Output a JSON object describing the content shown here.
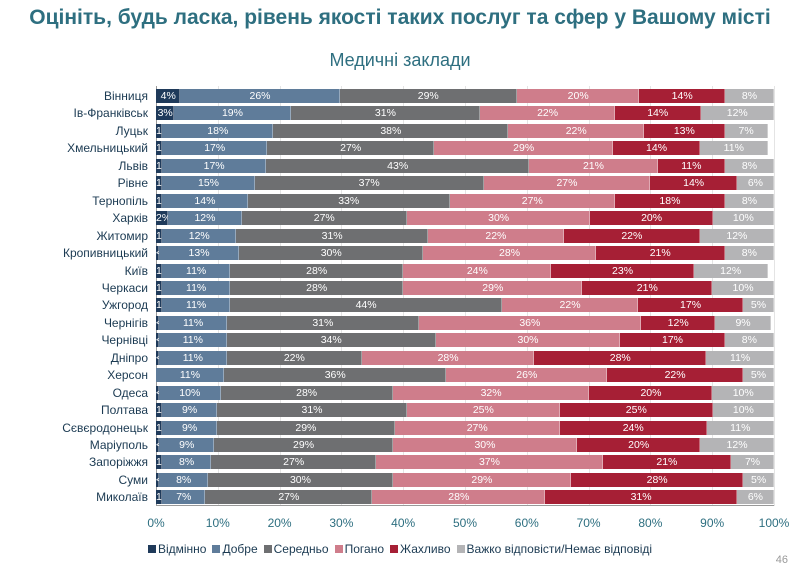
{
  "page_number": "46",
  "chart_data": {
    "type": "bar",
    "orientation": "horizontal",
    "stacked": true,
    "title": "Оцініть, будь ласка, рівень якості таких послуг та сфер у Вашому місті",
    "subtitle": "Медичні заклади",
    "xlim": [
      0,
      100
    ],
    "x_ticks": [
      "0%",
      "10%",
      "20%",
      "30%",
      "40%",
      "50%",
      "60%",
      "70%",
      "80%",
      "90%",
      "100%"
    ],
    "legend_position": "bottom",
    "categories": [
      "Вінниця",
      "Ів-Франківськ",
      "Луцьк",
      "Хмельницький",
      "Львів",
      "Рівне",
      "Тернопіль",
      "Харків",
      "Житомир",
      "Кропивницький",
      "Київ",
      "Черкаси",
      "Ужгород",
      "Чернігів",
      "Чернівці",
      "Дніпро",
      "Херсон",
      "Одеса",
      "Полтава",
      "Сєвєродонецьк",
      "Маріуполь",
      "Запоріжжя",
      "Суми",
      "Миколаїв"
    ],
    "series": [
      {
        "name": "Відмінно",
        "color": "#1f3a5a",
        "values": [
          4,
          3,
          1,
          1,
          1,
          1,
          1,
          2,
          1,
          0.5,
          1,
          1,
          1,
          0.5,
          0.5,
          0.5,
          0,
          0.5,
          1,
          1,
          0.5,
          1,
          0.5,
          1
        ],
        "labels": [
          "4%",
          "3%",
          "1%",
          "1%",
          "1%",
          "1%",
          "1%",
          "2%",
          "1%",
          "<1%",
          "1%",
          "1%",
          "1%",
          "<1%",
          "<1%",
          "<1%",
          "",
          "<1%",
          "1%",
          "1%",
          "<1%",
          "1%",
          "<1%",
          "1%"
        ]
      },
      {
        "name": "Добре",
        "color": "#5f7c9a",
        "values": [
          26,
          19,
          18,
          17,
          17,
          15,
          14,
          12,
          12,
          13,
          11,
          11,
          11,
          11,
          11,
          11,
          11,
          10,
          9,
          9,
          9,
          8,
          8,
          7
        ]
      },
      {
        "name": "Середньо",
        "color": "#6e6f71",
        "values": [
          29,
          31,
          38,
          27,
          43,
          37,
          33,
          27,
          31,
          30,
          28,
          28,
          44,
          31,
          34,
          22,
          36,
          28,
          31,
          29,
          29,
          27,
          30,
          27
        ]
      },
      {
        "name": "Погано",
        "color": "#cf7d8b",
        "values": [
          20,
          22,
          22,
          29,
          21,
          27,
          27,
          30,
          22,
          28,
          24,
          29,
          22,
          36,
          30,
          28,
          26,
          32,
          25,
          27,
          30,
          37,
          29,
          28
        ]
      },
      {
        "name": "Жахливо",
        "color": "#a61f35",
        "values": [
          14,
          14,
          13,
          14,
          11,
          14,
          18,
          20,
          22,
          21,
          23,
          21,
          17,
          12,
          17,
          28,
          22,
          20,
          25,
          24,
          20,
          21,
          28,
          31
        ]
      },
      {
        "name": "Важко відповісти/Немає відповіді",
        "color": "#b4b4b6",
        "values": [
          8,
          12,
          7,
          11,
          8,
          6,
          8,
          10,
          12,
          8,
          12,
          10,
          5,
          9,
          8,
          11,
          5,
          10,
          10,
          11,
          12,
          7,
          5,
          6
        ]
      }
    ]
  }
}
